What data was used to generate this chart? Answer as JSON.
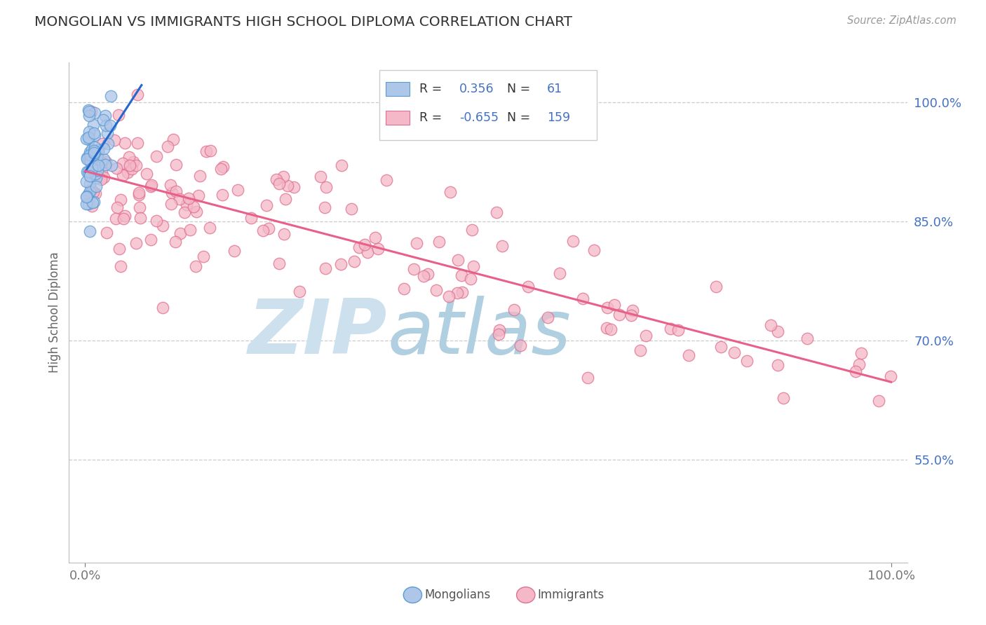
{
  "title": "MONGOLIAN VS IMMIGRANTS HIGH SCHOOL DIPLOMA CORRELATION CHART",
  "source": "Source: ZipAtlas.com",
  "ylabel": "High School Diploma",
  "y_tick_values": [
    0.55,
    0.7,
    0.85,
    1.0
  ],
  "xlim": [
    -0.02,
    1.02
  ],
  "ylim": [
    0.42,
    1.05
  ],
  "legend_r_mongolian": "0.356",
  "legend_n_mongolian": "61",
  "legend_r_immigrant": "-0.655",
  "legend_n_immigrant": "159",
  "mongolian_fill_color": "#aec6e8",
  "mongolian_edge_color": "#5b9bd5",
  "immigrant_fill_color": "#f4b8c8",
  "immigrant_edge_color": "#e07090",
  "mongolian_line_color": "#2468cc",
  "immigrant_line_color": "#e8608a",
  "background_color": "#ffffff",
  "grid_color": "#cccccc",
  "title_color": "#333333",
  "watermark_zip_color": "#cce0ee",
  "watermark_atlas_color": "#b0cfe0",
  "text_blue": "#4472c4",
  "text_dark": "#333333"
}
